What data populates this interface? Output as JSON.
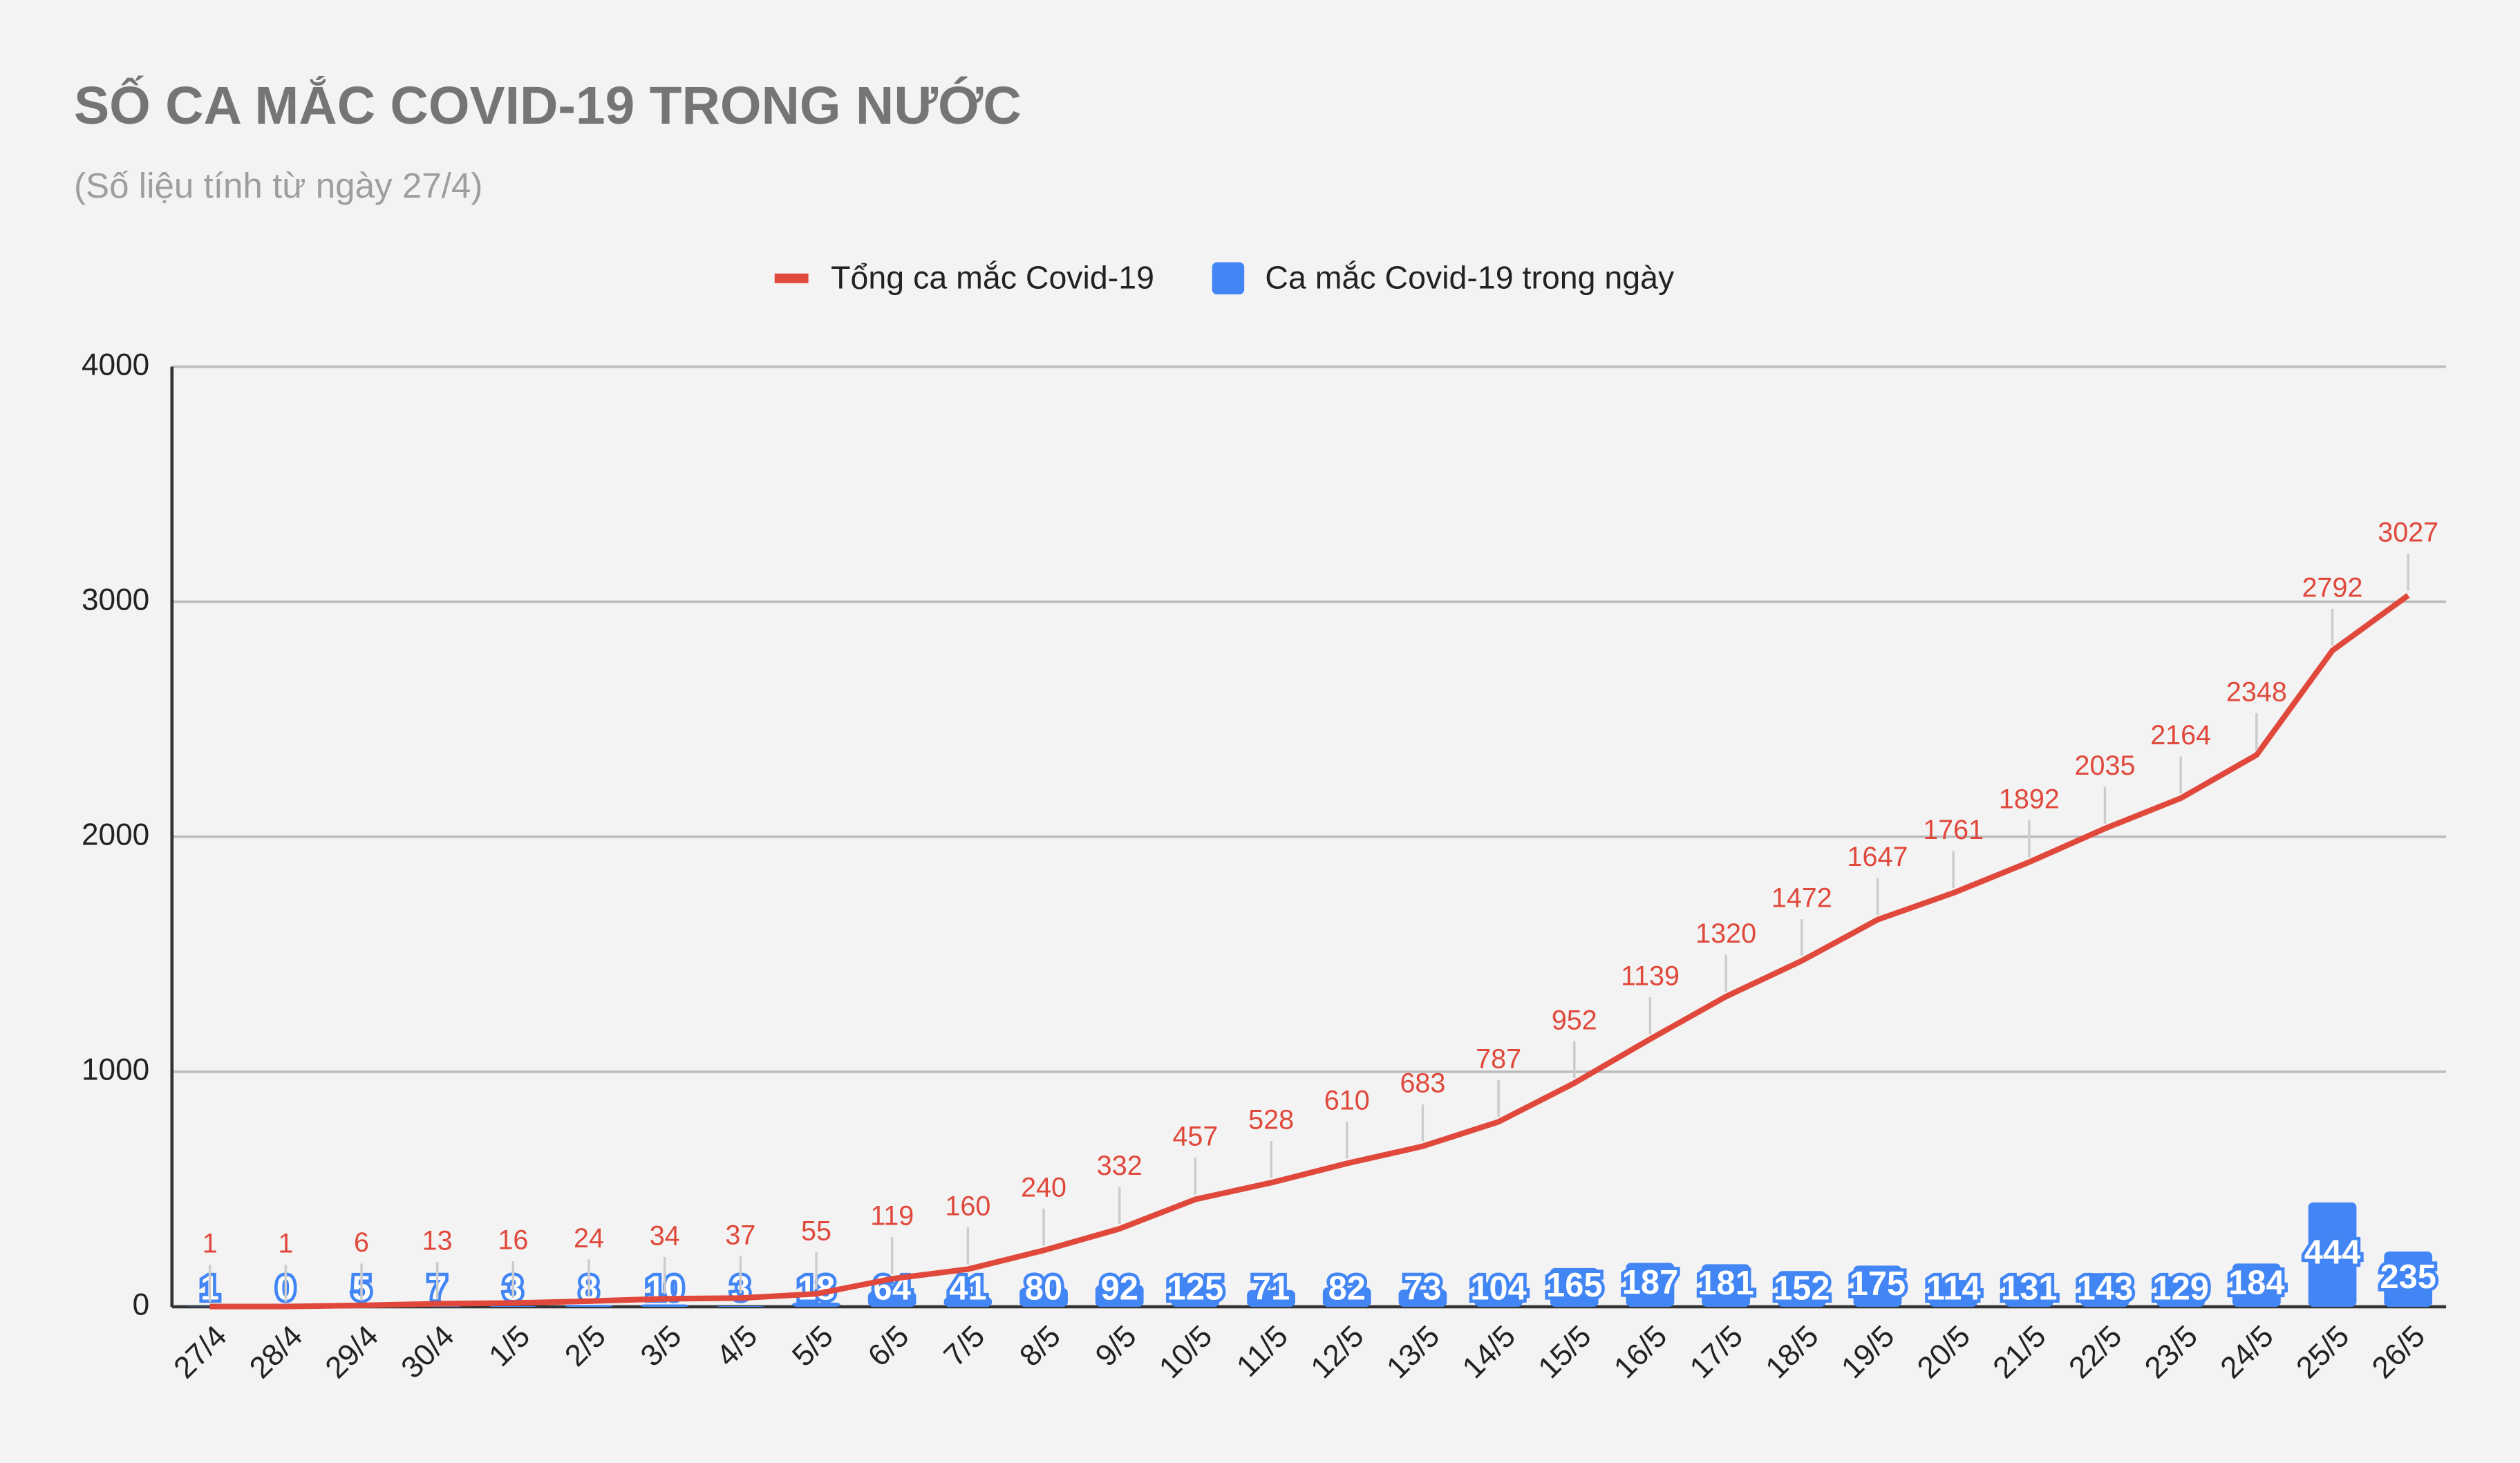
{
  "chart_data": {
    "type": "line-bar",
    "title": "SỐ CA MẮC COVID-19 TRONG NƯỚC",
    "subtitle": "(Số liệu tính từ ngày 27/4)",
    "categories": [
      "27/4",
      "28/4",
      "29/4",
      "30/4",
      "1/5",
      "2/5",
      "3/5",
      "4/5",
      "5/5",
      "6/5",
      "7/5",
      "8/5",
      "9/5",
      "10/5",
      "11/5",
      "12/5",
      "13/5",
      "14/5",
      "15/5",
      "16/5",
      "17/5",
      "18/5",
      "19/5",
      "20/5",
      "21/5",
      "22/5",
      "23/5",
      "24/5",
      "25/5",
      "26/5"
    ],
    "series": [
      {
        "name": "Tổng ca mắc Covid-19",
        "color": "#e0483b",
        "type": "line",
        "values": [
          1,
          1,
          6,
          13,
          16,
          24,
          34,
          37,
          55,
          119,
          160,
          240,
          332,
          457,
          528,
          610,
          683,
          787,
          952,
          1139,
          1320,
          1472,
          1647,
          1761,
          1892,
          2035,
          2164,
          2348,
          2792,
          3027
        ]
      },
      {
        "name": "Ca mắc Covid-19 trong ngày",
        "color": "#4285f4",
        "type": "bar",
        "values": [
          1,
          0,
          5,
          7,
          3,
          8,
          10,
          3,
          18,
          64,
          41,
          80,
          92,
          125,
          71,
          82,
          73,
          104,
          165,
          187,
          181,
          152,
          175,
          114,
          131,
          143,
          129,
          184,
          444,
          235
        ]
      }
    ],
    "ylim": [
      0,
      4000
    ],
    "yticks": [
      0,
      1000,
      2000,
      3000,
      4000
    ],
    "grid": true,
    "legend": "top"
  }
}
